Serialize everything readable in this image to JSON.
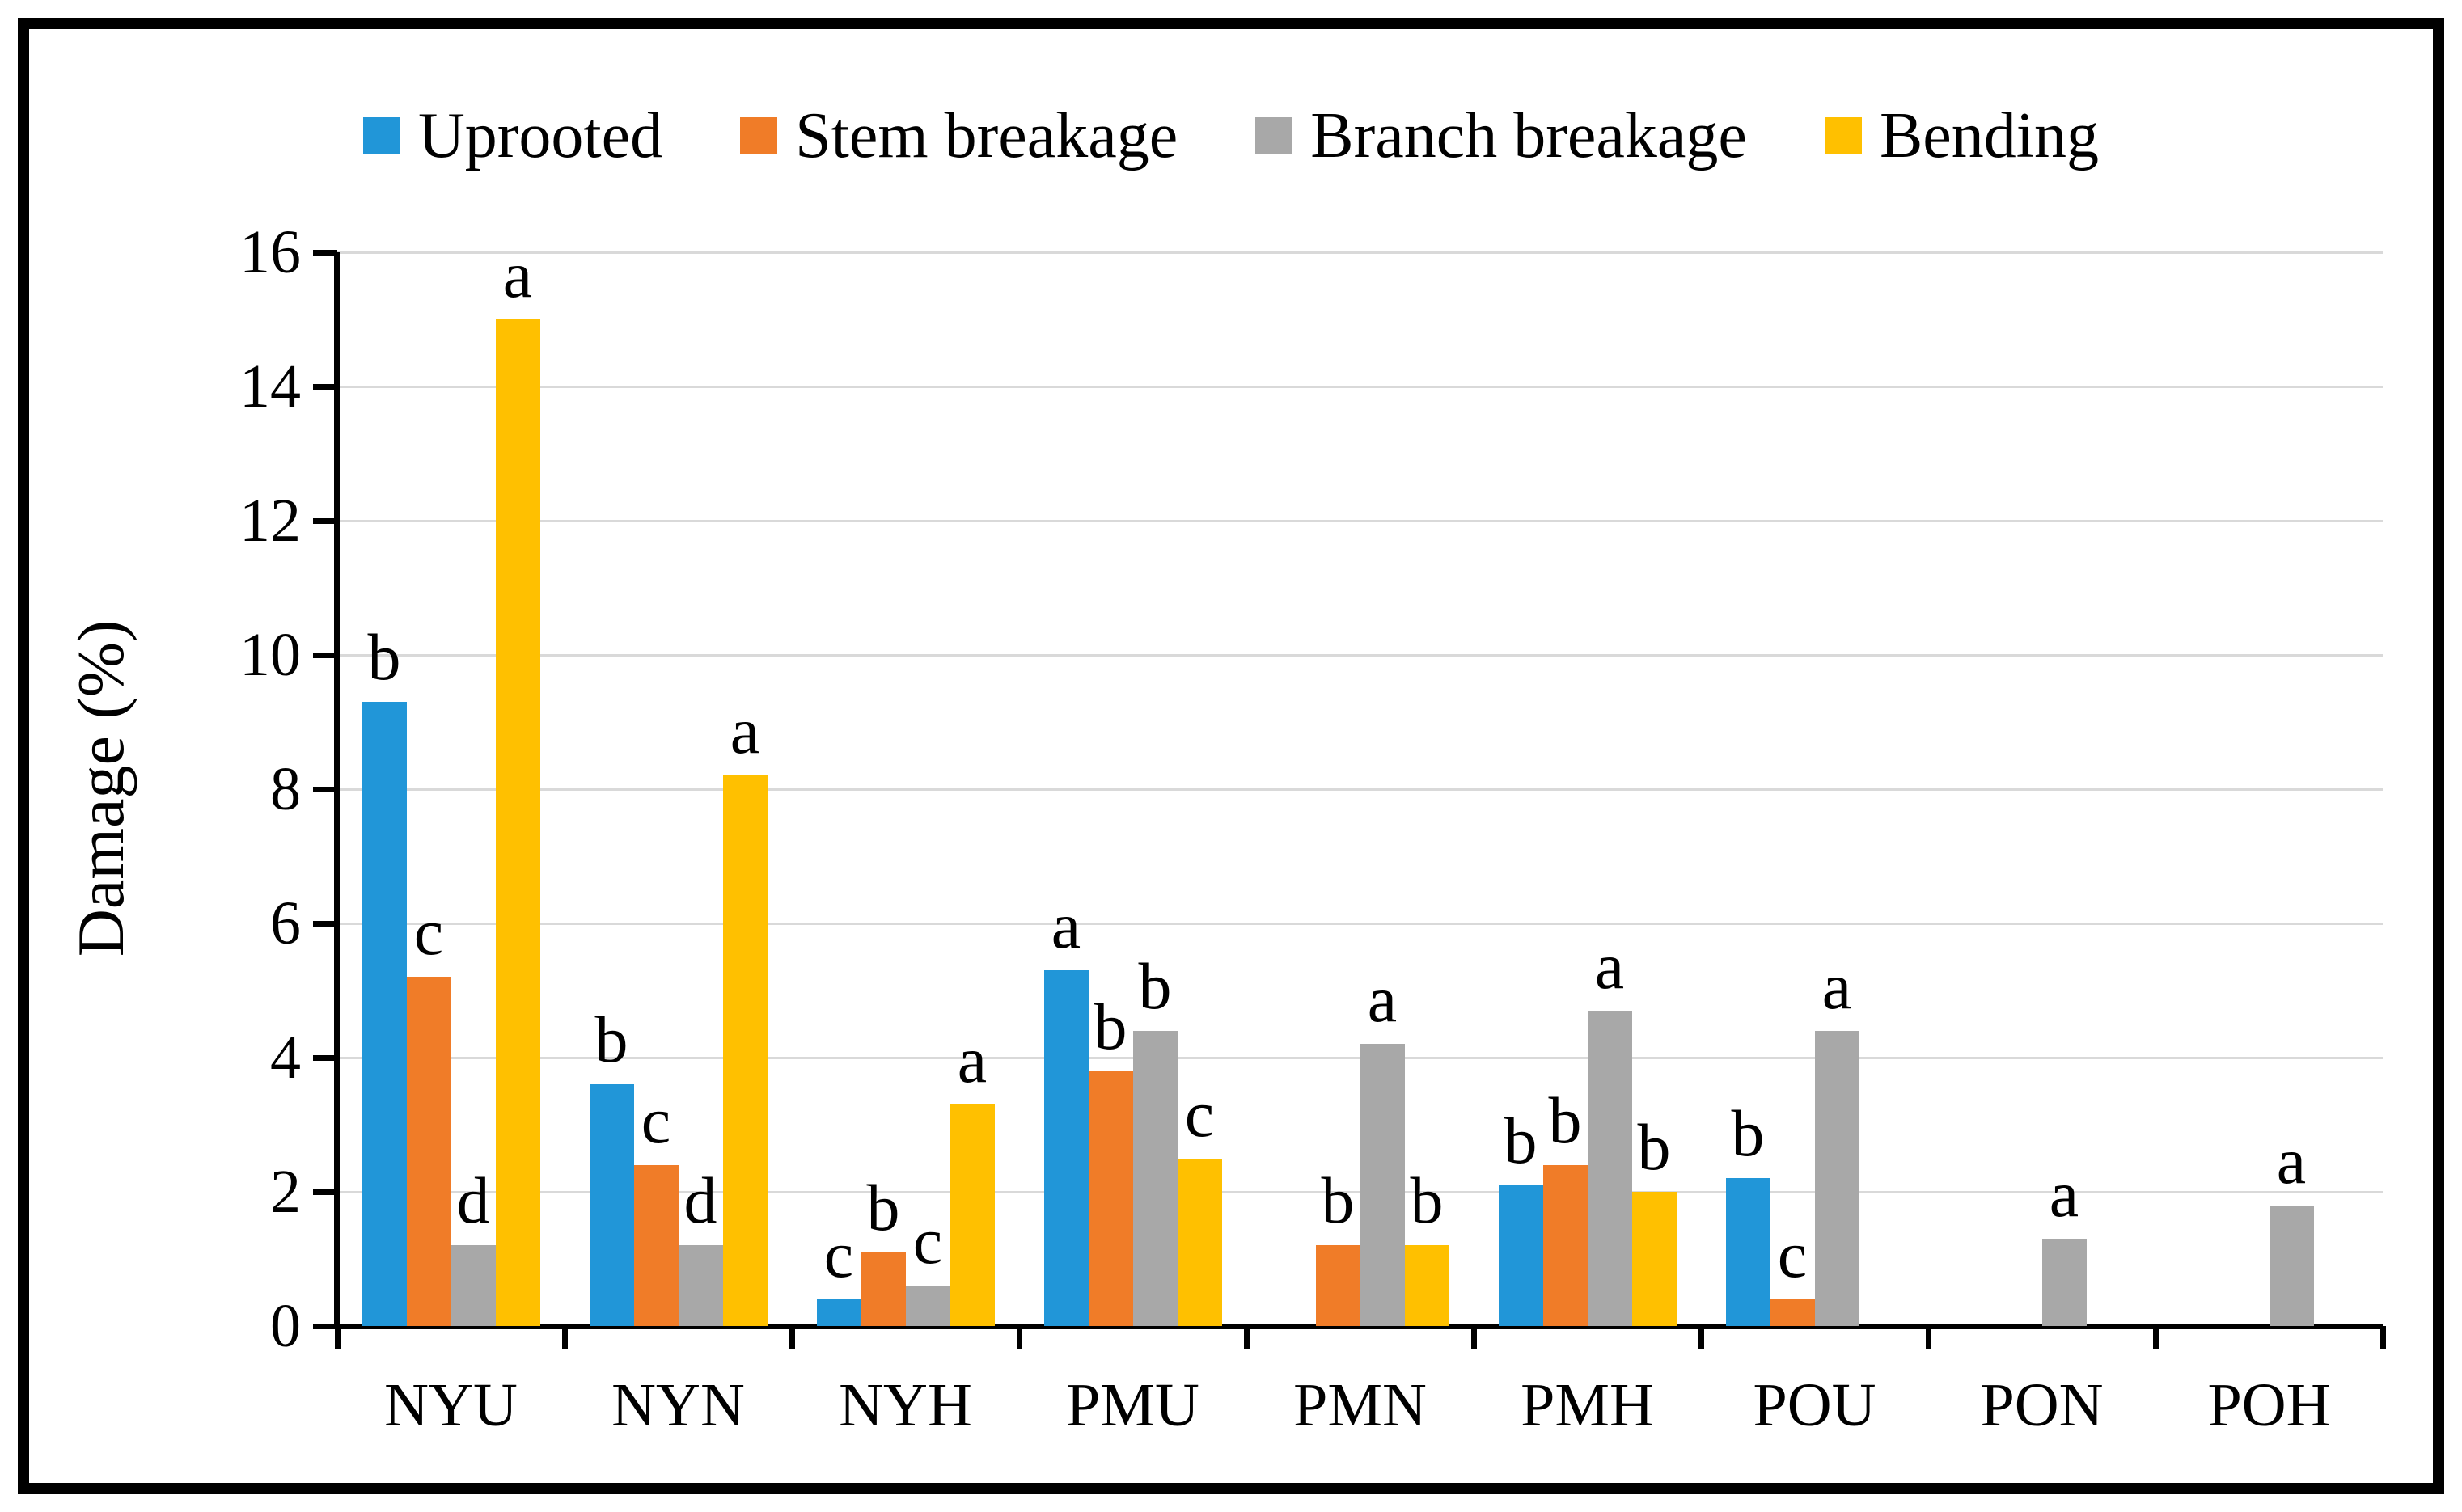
{
  "chart_data": {
    "type": "bar",
    "title": "",
    "ylabel": "Damage (%)",
    "xlabel": "",
    "ylim": [
      0,
      16
    ],
    "yticks": [
      0,
      2,
      4,
      6,
      8,
      10,
      12,
      14,
      16
    ],
    "grid": true,
    "legend_position": "top",
    "categories": [
      "NYU",
      "NYN",
      "NYH",
      "PMU",
      "PMN",
      "PMH",
      "POU",
      "PON",
      "POH"
    ],
    "series": [
      {
        "name": "Uprooted",
        "color": "#2196D8",
        "values": [
          9.3,
          3.6,
          0.4,
          5.3,
          0,
          2.1,
          2.2,
          0,
          0
        ],
        "letters": [
          "b",
          "b",
          "c",
          "a",
          "",
          "b",
          "b",
          "",
          ""
        ]
      },
      {
        "name": "Stem breakage",
        "color": "#F07C28",
        "values": [
          5.2,
          2.4,
          1.1,
          3.8,
          1.2,
          2.4,
          0.4,
          0,
          0
        ],
        "letters": [
          "c",
          "c",
          "b",
          "b",
          "b",
          "b",
          "c",
          "",
          ""
        ]
      },
      {
        "name": "Branch breakage",
        "color": "#A8A8A8",
        "values": [
          1.2,
          1.2,
          0.6,
          4.4,
          4.2,
          4.7,
          4.4,
          1.3,
          1.8
        ],
        "letters": [
          "d",
          "d",
          "c",
          "b",
          "a",
          "a",
          "a",
          "a",
          "a"
        ]
      },
      {
        "name": "Bending",
        "color": "#FFC000",
        "values": [
          15.0,
          8.2,
          3.3,
          2.5,
          1.2,
          2.0,
          0,
          0,
          0
        ],
        "letters": [
          "a",
          "a",
          "a",
          "c",
          "b",
          "b",
          "",
          "",
          ""
        ]
      }
    ],
    "colors": {
      "grid": "#D9D9D9",
      "axis": "#000000",
      "text": "#000000"
    }
  }
}
